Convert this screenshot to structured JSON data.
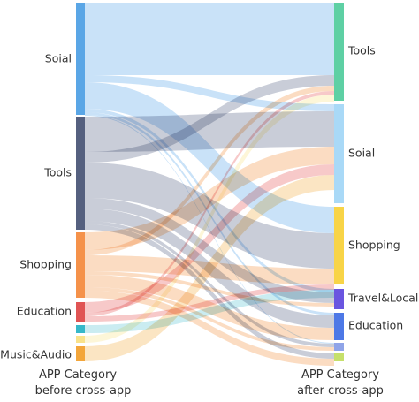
{
  "left_nodes": [
    {
      "label": "Soial",
      "color": "#5aa6e6",
      "flow_color": "#9ccaf2"
    },
    {
      "label": "Tools",
      "color": "#55607f",
      "flow_color": "#9ca4b8"
    },
    {
      "label": "Shopping",
      "color": "#f5924a",
      "flow_color": "#f7c08f"
    },
    {
      "label": "Education",
      "color": "#e05454",
      "flow_color": "#f09c9c"
    },
    {
      "label": "",
      "color": "#36b8c9",
      "flow_color": "#9fdde6"
    },
    {
      "label": "",
      "color": "#f9e28a",
      "flow_color": "#fbeeb8"
    },
    {
      "label": "Music&Audio",
      "color": "#f3a63b",
      "flow_color": "#f8cf91"
    }
  ],
  "right_nodes": [
    {
      "label": "Tools",
      "color": "#5ed0a4"
    },
    {
      "label": "Soial",
      "color": "#a9d9f7"
    },
    {
      "label": "Shopping",
      "color": "#f8d447"
    },
    {
      "label": "Travel&Local",
      "color": "#6a55e0"
    },
    {
      "label": "Education",
      "color": "#4d78e6"
    },
    {
      "label": "",
      "color": "#8fa4e8"
    },
    {
      "label": "",
      "color": "#c6e06b"
    }
  ],
  "left_axis": {
    "line1": "APP Category",
    "line2": "before cross-app"
  },
  "right_axis": {
    "line1": "APP Category",
    "line2": "after cross-app"
  }
}
